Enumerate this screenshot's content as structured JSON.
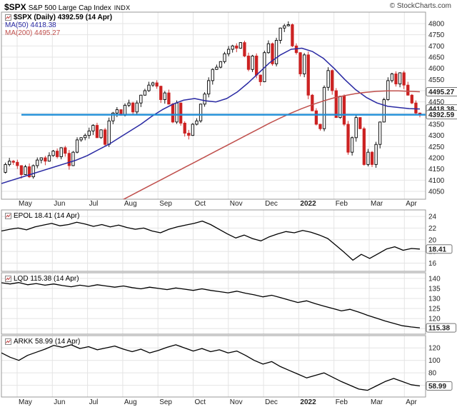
{
  "header": {
    "symbol": "$SPX",
    "title": "S&P 500 Large Cap Index",
    "exchange": "INDX",
    "copyright": "© StockCharts.com"
  },
  "legend": {
    "spx": "$SPX (Daily) 4392.59 (14 Apr)",
    "ma50": "MA(50) 4418.38",
    "ma200": "MA(200) 4495.27"
  },
  "panels": {
    "epol_label": "EPOL 18.41 (14 Apr)",
    "lqd_label": "LQD 115.38 (14 Apr)",
    "arkk_label": "ARKK 58.99 (14 Apr)"
  },
  "months": [
    "May",
    "Jun",
    "Jul",
    "Aug",
    "Sep",
    "Oct",
    "Nov",
    "Dec",
    "2022",
    "Feb",
    "Mar",
    "Apr"
  ],
  "colors": {
    "candle_up": "#000000",
    "candle_down": "#cc2222",
    "ma50": "#2929a3",
    "ma200": "#c0504d",
    "hline": "#1e8ed7"
  },
  "chart_data": [
    {
      "id": "spx",
      "type": "candlestick",
      "title": "$SPX (Daily) 4392.59 (14 Apr)",
      "xlabel": "",
      "ylabel": "",
      "ylim": [
        4050,
        4800
      ],
      "yticks": [
        4800,
        4750,
        4700,
        4650,
        4600,
        4550,
        4500,
        4450,
        4400,
        4350,
        4300,
        4250,
        4200,
        4150,
        4100,
        4050
      ],
      "close": [
        4135,
        4170,
        4185,
        4180,
        4165,
        4125,
        4160,
        4115,
        4165,
        4190,
        4200,
        4185,
        4210,
        4230,
        4205,
        4245,
        4220,
        4165,
        4225,
        4280,
        4290,
        4300,
        4320,
        4345,
        4290,
        4325,
        4260,
        4365,
        4400,
        4415,
        4390,
        4435,
        4445,
        4405,
        4445,
        4480,
        4500,
        4525,
        4535,
        4520,
        4460,
        4490,
        4440,
        4360,
        4445,
        4355,
        4310,
        4300,
        4350,
        4365,
        4440,
        4485,
        4545,
        4595,
        4605,
        4630,
        4665,
        4685,
        4700,
        4690,
        4715,
        4655,
        4595,
        4655,
        4570,
        4540,
        4670,
        4710,
        4620,
        4725,
        4780,
        4790,
        4795,
        4700,
        4670,
        4575,
        4660,
        4480,
        4410,
        4350,
        4330,
        4515,
        4590,
        4500,
        4380,
        4475,
        4350,
        4225,
        4290,
        4380,
        4330,
        4170,
        4225,
        4170,
        4260,
        4360,
        4460,
        4545,
        4575,
        4530,
        4580,
        4525,
        4480,
        4445,
        4400,
        4392.59
      ],
      "series": [
        {
          "name": "MA(50)",
          "color": "#2929a3",
          "last": 4418.38,
          "values": [
            4085,
            4100,
            4115,
            4130,
            4145,
            4160,
            4175,
            4190,
            4210,
            4235,
            4260,
            4290,
            4320,
            4350,
            4385,
            4415,
            4440,
            4458,
            4465,
            4455,
            4450,
            4465,
            4495,
            4535,
            4580,
            4625,
            4660,
            4685,
            4690,
            4675,
            4645,
            4600,
            4550,
            4505,
            4470,
            4445,
            4430,
            4425,
            4420,
            4418.38
          ]
        },
        {
          "name": "MA(200)",
          "color": "#c0504d",
          "last": 4495.27,
          "values": [
            3730,
            3755,
            3780,
            3805,
            3830,
            3855,
            3880,
            3905,
            3930,
            3955,
            3980,
            4005,
            4030,
            4055,
            4080,
            4105,
            4130,
            4155,
            4180,
            4205,
            4230,
            4255,
            4280,
            4305,
            4330,
            4355,
            4378,
            4400,
            4420,
            4438,
            4454,
            4468,
            4478,
            4487,
            4493,
            4497,
            4499,
            4499,
            4497,
            4495.27
          ]
        }
      ],
      "hline": {
        "value": 4392.59,
        "color": "#1e8ed7"
      },
      "right_labels": [
        {
          "text": "4495.27",
          "value": 4495.27,
          "color": "#cc0000"
        },
        {
          "text": "4418.38",
          "value": 4418.38,
          "color": "#2929a3"
        },
        {
          "text": "4392.59",
          "value": 4392.59,
          "color": "#000000"
        }
      ]
    },
    {
      "id": "epol",
      "type": "line",
      "title": "EPOL 18.41 (14 Apr)",
      "ylim": [
        15.2,
        24.5
      ],
      "yticks": [
        24,
        22,
        20,
        18,
        16
      ],
      "values": [
        21.5,
        21.8,
        22.0,
        21.7,
        22.2,
        22.5,
        22.8,
        22.4,
        22.6,
        23.0,
        22.7,
        22.3,
        22.6,
        22.2,
        22.5,
        22.1,
        21.8,
        22.0,
        21.5,
        21.2,
        21.8,
        22.2,
        22.5,
        22.8,
        23.2,
        22.6,
        21.8,
        21.0,
        20.3,
        20.8,
        20.2,
        19.8,
        20.5,
        21.0,
        21.4,
        21.2,
        21.6,
        21.3,
        20.8,
        20.2,
        19.0,
        17.8,
        16.5,
        17.5,
        16.8,
        17.6,
        18.4,
        18.8,
        18.2,
        18.5,
        18.41
      ],
      "right_labels": [
        {
          "text": "18.41",
          "value": 18.41,
          "color": "#000000"
        }
      ]
    },
    {
      "id": "lqd",
      "type": "line",
      "title": "LQD 115.38 (14 Apr)",
      "ylim": [
        114,
        141
      ],
      "yticks": [
        140,
        135,
        130,
        125,
        120,
        115
      ],
      "values": [
        137.8,
        137.2,
        137.9,
        136.8,
        137.4,
        136.6,
        137.2,
        136.4,
        135.8,
        136.6,
        136.0,
        136.8,
        136.2,
        135.6,
        136.2,
        135.4,
        134.8,
        135.6,
        135.0,
        134.4,
        135.2,
        134.6,
        134.0,
        134.8,
        134.0,
        133.4,
        132.8,
        133.6,
        132.6,
        131.8,
        130.8,
        131.6,
        130.4,
        129.2,
        128.0,
        128.8,
        127.4,
        126.2,
        125.0,
        123.8,
        124.6,
        123.2,
        121.6,
        120.2,
        118.8,
        117.6,
        116.4,
        115.8,
        115.38
      ],
      "right_labels": [
        {
          "text": "115.38",
          "value": 115.38,
          "color": "#000000"
        }
      ]
    },
    {
      "id": "arkk",
      "type": "line",
      "title": "ARKK 58.99 (14 Apr)",
      "ylim": [
        47,
        134
      ],
      "yticks": [
        120,
        100,
        80,
        60
      ],
      "values": [
        112,
        105,
        100,
        108,
        113,
        118,
        124,
        121,
        125,
        119,
        122,
        117,
        120,
        123,
        118,
        114,
        118,
        112,
        116,
        121,
        125,
        120,
        115,
        119,
        114,
        117,
        112,
        115,
        108,
        100,
        94,
        98,
        90,
        84,
        78,
        72,
        76,
        80,
        73,
        66,
        60,
        54,
        52,
        59,
        66,
        71,
        66,
        61,
        58.99
      ],
      "right_labels": [
        {
          "text": "58.99",
          "value": 58.99,
          "color": "#000000"
        }
      ]
    }
  ]
}
